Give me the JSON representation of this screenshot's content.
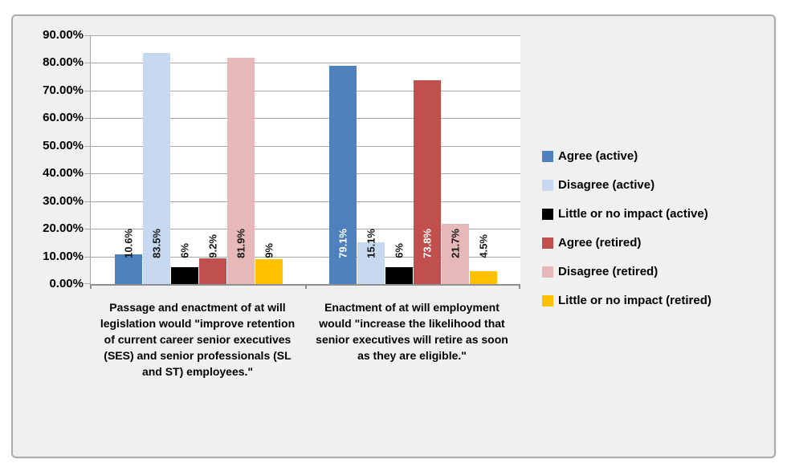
{
  "chart_data": {
    "type": "bar",
    "title": "",
    "categories": [
      "Passage and enactment of at will legislation would \"improve retention of current career senior executives (SES) and senior professionals (SL and ST) employees.\"",
      "Enactment of at will employment would \"increase the likelihood that senior executives will retire as soon as they are eligible.\""
    ],
    "series": [
      {
        "name": "Agree (active)",
        "color": "#4F81BD",
        "values": [
          10.6,
          79.1
        ],
        "data_labels": [
          {
            "text": "10.6%",
            "style": "dark"
          },
          {
            "text": "79.1%",
            "style": "light"
          }
        ]
      },
      {
        "name": "Disagree (active)",
        "color": "#C6D9F1",
        "values": [
          83.5,
          15.1
        ],
        "data_labels": [
          {
            "text": "83.5%",
            "style": "dark"
          },
          {
            "text": "15.1%",
            "style": "dark"
          }
        ]
      },
      {
        "name": "Little or no impact (active)",
        "color": "#000000",
        "values": [
          6,
          6
        ],
        "data_labels": [
          {
            "text": "6%",
            "style": "dark"
          },
          {
            "text": "6%",
            "style": "dark"
          }
        ]
      },
      {
        "name": "Agree (retired)",
        "color": "#C0504D",
        "values": [
          9.2,
          73.8
        ],
        "data_labels": [
          {
            "text": "9.2%",
            "style": "dark"
          },
          {
            "text": "73.8%",
            "style": "light"
          }
        ]
      },
      {
        "name": "Disagree (retired)",
        "color": "#E6B9B8",
        "values": [
          81.9,
          21.7
        ],
        "data_labels": [
          {
            "text": "81.9%",
            "style": "dark"
          },
          {
            "text": "21.7%",
            "style": "dark"
          }
        ]
      },
      {
        "name": "Little or no impact (retired)",
        "color": "#FFC000",
        "values": [
          9,
          4.5
        ],
        "data_labels": [
          {
            "text": "9%",
            "style": "dark"
          },
          {
            "text": "4.5%",
            "style": "dark"
          }
        ]
      }
    ],
    "y_axis": {
      "min": 0,
      "max": 90,
      "step": 10,
      "tick_labels": [
        "90.00%",
        "80.00%",
        "70.00%",
        "60.00%",
        "50.00%",
        "40.00%",
        "30.00%",
        "20.00%",
        "10.00%",
        "0.00%"
      ]
    },
    "legend_position": "right",
    "grid": true,
    "colors": {
      "chart_background": "#F0F0F0",
      "plot_background": "#FFFFFF",
      "gridline": "#A6A6A6",
      "axis_line": "#8F8F8F",
      "data_label_dark": "#171717",
      "data_label_light": "#FFFFFF"
    }
  }
}
